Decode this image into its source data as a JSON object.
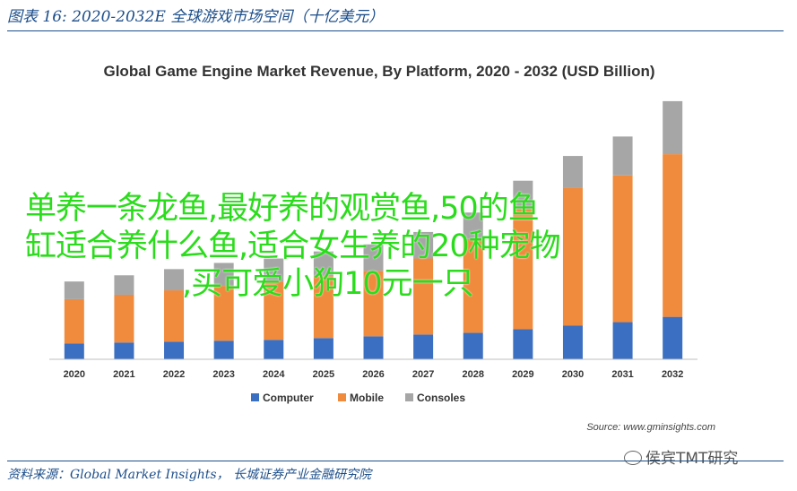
{
  "caption": "图表 16:  2020-2032E 全球游戏市场空间（十亿美元）",
  "source_footer": "资料来源：Global Market Insights， 长城证券产业金融研究院",
  "overlay_text": [
    "单养一条龙鱼,最好养的观赏鱼,50的鱼",
    "缸适合养什么鱼,适合女生养的20种宠物",
    ",买可爱小狗10元一只"
  ],
  "wechat_label": "侯宾TMT研究",
  "colors": {
    "computer": "#3b6fc2",
    "mobile": "#f08a3c",
    "consoles": "#a6a6a6",
    "overlay": "#2bdc1c",
    "caption": "#1c4e8a"
  },
  "chart_data": {
    "type": "bar",
    "stacked": true,
    "title": "Global Game Engine Market Revenue, By Platform, 2020 - 2032 (USD Billion)",
    "source": "Source: www.gminsights.com",
    "categories": [
      "2020",
      "2021",
      "2022",
      "2023",
      "2024",
      "2025",
      "2026",
      "2027",
      "2028",
      "2029",
      "2030",
      "2031",
      "2032"
    ],
    "series": [
      {
        "name": "Computer",
        "values": [
          0.9,
          0.95,
          1.0,
          1.05,
          1.1,
          1.2,
          1.3,
          1.4,
          1.5,
          1.7,
          1.9,
          2.1,
          2.4
        ]
      },
      {
        "name": "Mobile",
        "values": [
          2.5,
          2.7,
          2.9,
          3.1,
          3.3,
          3.5,
          3.7,
          4.3,
          5.3,
          6.8,
          7.8,
          8.3,
          9.2
        ]
      },
      {
        "name": "Consoles",
        "values": [
          1.0,
          1.1,
          1.2,
          1.3,
          1.3,
          1.4,
          1.5,
          1.5,
          1.5,
          1.6,
          1.8,
          2.2,
          3.0
        ]
      }
    ],
    "legend_position": "bottom",
    "grid": false,
    "ylim": [
      0,
      15
    ]
  }
}
